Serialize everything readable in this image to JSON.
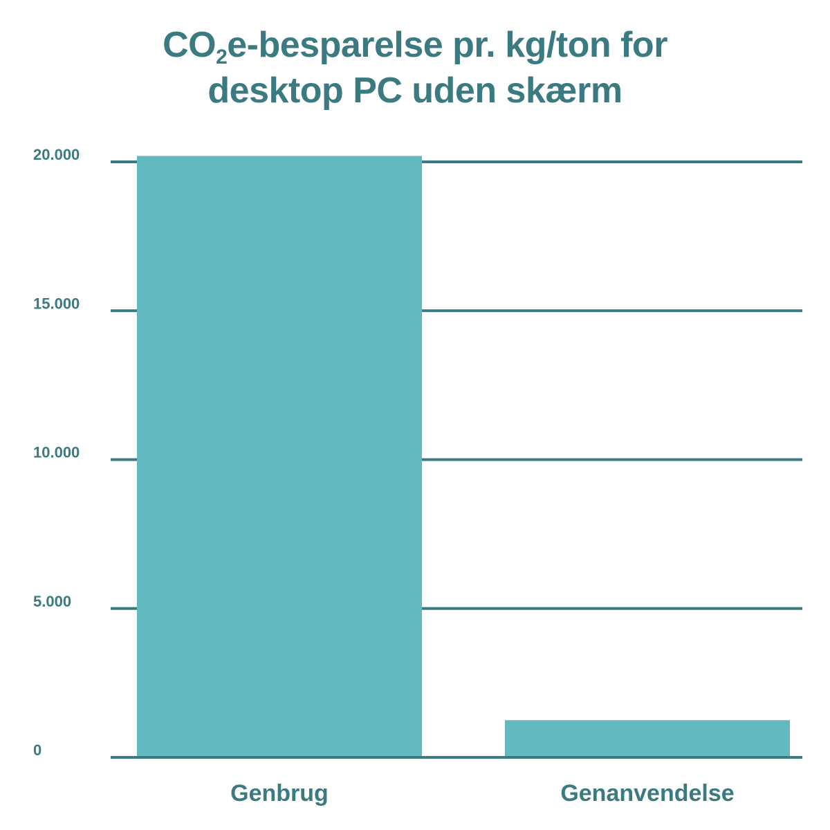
{
  "title": {
    "prefix": "CO",
    "subscript": "2",
    "rest_line1": "e-besparelse pr. kg/ton for",
    "line2": "desktop PC uden skærm"
  },
  "colors": {
    "bar": "#63b9c0",
    "axis_text": "#3a7a80",
    "grid": "#3a7a80"
  },
  "chart_data": {
    "type": "bar",
    "title": "CO2e-besparelse pr. kg/ton for desktop PC uden skærm",
    "categories": [
      "Genbrug",
      "Genanvendelse"
    ],
    "values": [
      20200,
      1250
    ],
    "xlabel": "",
    "ylabel": "",
    "ylim": [
      0,
      20000
    ],
    "yticks": [
      0,
      5000,
      10000,
      15000,
      20000
    ],
    "ytick_labels": [
      "0",
      "5.000",
      "10.000",
      "15.000",
      "20.000"
    ],
    "grid": true,
    "legend": "none"
  }
}
